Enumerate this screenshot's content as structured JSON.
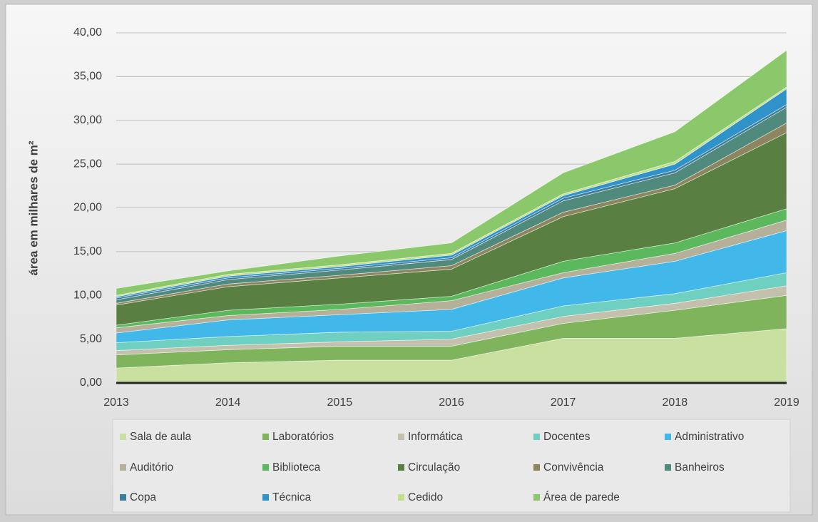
{
  "chart_data": {
    "type": "stacked_area",
    "y_axis_label": "área em milhares de m²",
    "categories": [
      "2013",
      "2014",
      "2015",
      "2016",
      "2017",
      "2018",
      "2019"
    ],
    "ylim": [
      0,
      40
    ],
    "yticks": [
      {
        "value": 0,
        "label": "0,00"
      },
      {
        "value": 5,
        "label": "5,00"
      },
      {
        "value": 10,
        "label": "10,00"
      },
      {
        "value": 15,
        "label": "15,00"
      },
      {
        "value": 20,
        "label": "20,00"
      },
      {
        "value": 25,
        "label": "25,00"
      },
      {
        "value": 30,
        "label": "30,00"
      },
      {
        "value": 35,
        "label": "35,00"
      },
      {
        "value": 40,
        "label": "40,00"
      }
    ],
    "grid": true,
    "legend": "bottom",
    "series": [
      {
        "name": "Sala de aula",
        "color": "#c9e0a0",
        "values": [
          1.7,
          2.3,
          2.6,
          2.6,
          5.1,
          5.1,
          6.2
        ]
      },
      {
        "name": "Laboratórios",
        "color": "#80b45c",
        "values": [
          1.5,
          1.5,
          1.6,
          1.6,
          1.7,
          3.2,
          3.8
        ]
      },
      {
        "name": "Informática",
        "color": "#c4c0ae",
        "values": [
          0.5,
          0.5,
          0.5,
          0.8,
          0.8,
          0.8,
          1.1
        ]
      },
      {
        "name": "Docentes",
        "color": "#6fcfc0",
        "values": [
          0.9,
          1.0,
          1.1,
          0.9,
          1.2,
          1.1,
          1.5
        ]
      },
      {
        "name": "Administrativo",
        "color": "#41b7ea",
        "values": [
          1.1,
          1.9,
          2.0,
          2.5,
          3.2,
          3.7,
          4.8
        ]
      },
      {
        "name": "Auditório",
        "color": "#b5b09a",
        "values": [
          0.6,
          0.5,
          0.6,
          1.0,
          0.6,
          0.9,
          1.2
        ]
      },
      {
        "name": "Biblioteca",
        "color": "#5cb85c",
        "values": [
          0.3,
          0.6,
          0.6,
          0.5,
          1.3,
          1.2,
          1.3
        ]
      },
      {
        "name": "Circulação",
        "color": "#5a7f43",
        "values": [
          2.3,
          2.7,
          3.0,
          3.1,
          5.1,
          6.2,
          8.7
        ]
      },
      {
        "name": "Convivência",
        "color": "#8c8560",
        "values": [
          0.2,
          0.3,
          0.3,
          0.4,
          0.5,
          0.4,
          1.1
        ]
      },
      {
        "name": "Banheiros",
        "color": "#4f8a7c",
        "values": [
          0.4,
          0.5,
          0.6,
          0.7,
          1.3,
          1.4,
          1.8
        ]
      },
      {
        "name": "Copa",
        "color": "#3e7c9c",
        "values": [
          0.2,
          0.2,
          0.2,
          0.2,
          0.3,
          0.3,
          0.3
        ]
      },
      {
        "name": "Técnica",
        "color": "#2f93c9",
        "values": [
          0.15,
          0.2,
          0.2,
          0.3,
          0.3,
          0.7,
          1.8
        ]
      },
      {
        "name": "Cedido",
        "color": "#c2e08a",
        "values": [
          0.15,
          0.2,
          0.2,
          0.2,
          0.2,
          0.3,
          0.2
        ]
      },
      {
        "name": "Área de parede",
        "color": "#8bc86b",
        "values": [
          0.8,
          0.4,
          1.0,
          1.2,
          2.4,
          3.4,
          4.2
        ]
      }
    ]
  }
}
